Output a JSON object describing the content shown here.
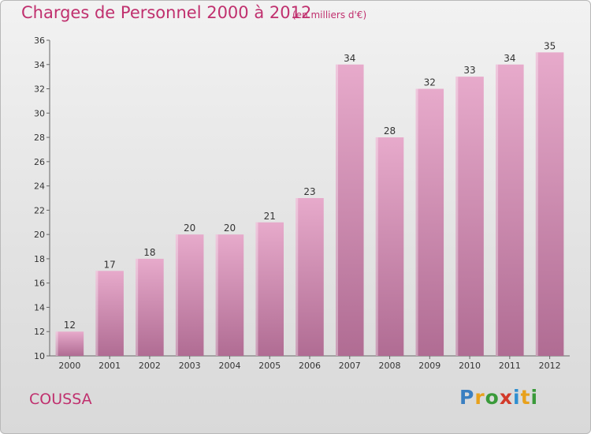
{
  "header": {
    "title": "Charges de Personnel 2000 à 2012",
    "subtitle": "(en milliers d'€)"
  },
  "footer": {
    "city": "COUSSA",
    "logo_letters": [
      "P",
      "r",
      "o",
      "x",
      "i",
      "t",
      "i"
    ],
    "logo_colors": [
      "#3a7fc1",
      "#e8a11c",
      "#3a9a3a",
      "#d23a2a",
      "#2f8fd0",
      "#e8a11c",
      "#3a9a3a"
    ]
  },
  "colors": {
    "bar_top": "#e7aacb",
    "bar_bottom": "#b06c93",
    "text_accent": "#c0306e"
  },
  "chart_data": {
    "type": "bar",
    "categories": [
      "2000",
      "2001",
      "2002",
      "2003",
      "2004",
      "2005",
      "2006",
      "2007",
      "2008",
      "2009",
      "2010",
      "2011",
      "2012"
    ],
    "values": [
      12,
      17,
      18,
      20,
      20,
      21,
      23,
      34,
      28,
      32,
      33,
      34,
      35
    ],
    "title": "Charges de Personnel 2000 à 2012",
    "xlabel": "",
    "ylabel": "",
    "ylim": [
      10,
      36
    ],
    "yticks": [
      10,
      12,
      14,
      16,
      18,
      20,
      22,
      24,
      26,
      28,
      30,
      32,
      34,
      36
    ],
    "grid": false,
    "data_labels": true
  }
}
